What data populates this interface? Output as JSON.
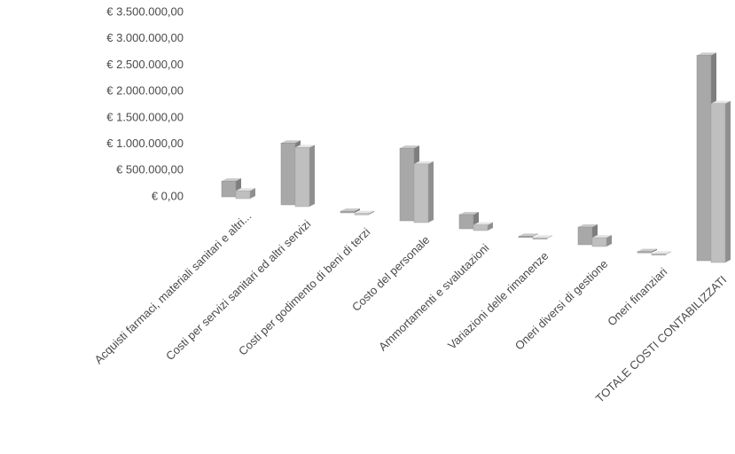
{
  "chart_data": {
    "type": "bar3d",
    "categories": [
      "Acquisti farmaci, materiali sanitari e altri...",
      "Costi per servizi sanitari ed altri servizi",
      "Costi per godimento di beni di terzi",
      "Costo del personale",
      "Ammortamenti e svalutazioni",
      "Variazioni delle rimanenze",
      "Oneri diversi di gestione",
      "Oneri finanziari",
      "TOTALE COSTI CONTABILIZZATI"
    ],
    "series": [
      {
        "color": "#a8a8a8",
        "values": [
          300000,
          1150000,
          30000,
          1300000,
          250000,
          10000,
          300000,
          20000,
          3360000
        ]
      },
      {
        "color": "#bfbfbf",
        "values": [
          150000,
          1100000,
          20000,
          1050000,
          100000,
          10000,
          150000,
          10000,
          2600000
        ]
      }
    ],
    "ylim": [
      0,
      3500000
    ],
    "yticks": [
      {
        "value": 0,
        "label": "€ 0,00"
      },
      {
        "value": 500000,
        "label": "€ 500.000,00"
      },
      {
        "value": 1000000,
        "label": "€ 1.000.000,00"
      },
      {
        "value": 1500000,
        "label": "€ 1.500.000,00"
      },
      {
        "value": 2000000,
        "label": "€ 2.000.000,00"
      },
      {
        "value": 2500000,
        "label": "€ 2.500.000,00"
      },
      {
        "value": 3000000,
        "label": "€ 3.000.000,00"
      },
      {
        "value": 3500000,
        "label": "€ 3.500.000,00"
      }
    ],
    "grid": false
  }
}
